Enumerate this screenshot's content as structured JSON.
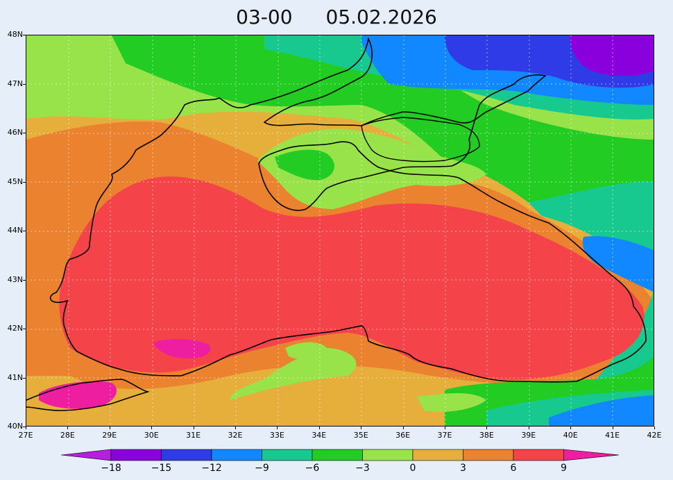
{
  "title": {
    "hour": "03-00",
    "date": "05.02.2026"
  },
  "map": {
    "lat_labels": [
      "48N",
      "47N",
      "46N",
      "45N",
      "44N",
      "43N",
      "42N",
      "41N",
      "40N"
    ],
    "lon_labels": [
      "27E",
      "28E",
      "29E",
      "30E",
      "31E",
      "32E",
      "33E",
      "34E",
      "35E",
      "36E",
      "37E",
      "38E",
      "39E",
      "40E",
      "41E",
      "42E"
    ],
    "lat_range": [
      40,
      48
    ],
    "lon_range": [
      27,
      42
    ],
    "grid": "dotted"
  },
  "colorbar": {
    "labels": [
      "-18",
      "-15",
      "-12",
      "-9",
      "-6",
      "-3",
      "0",
      "3",
      "6",
      "9"
    ],
    "colors": [
      "#8a00dc",
      "#2e3be6",
      "#1188ff",
      "#17c98f",
      "#22cc22",
      "#99e34a",
      "#e6ae3a",
      "#ea8230",
      "#f4444a",
      "#ee1ea0"
    ],
    "lower_arrow_color": "#b51fe0",
    "upper_arrow_color": "#ee1ea0"
  },
  "colors": {
    "background": "#e6eefa",
    "coastline": "#000000",
    "grid": "#ffffff"
  }
}
